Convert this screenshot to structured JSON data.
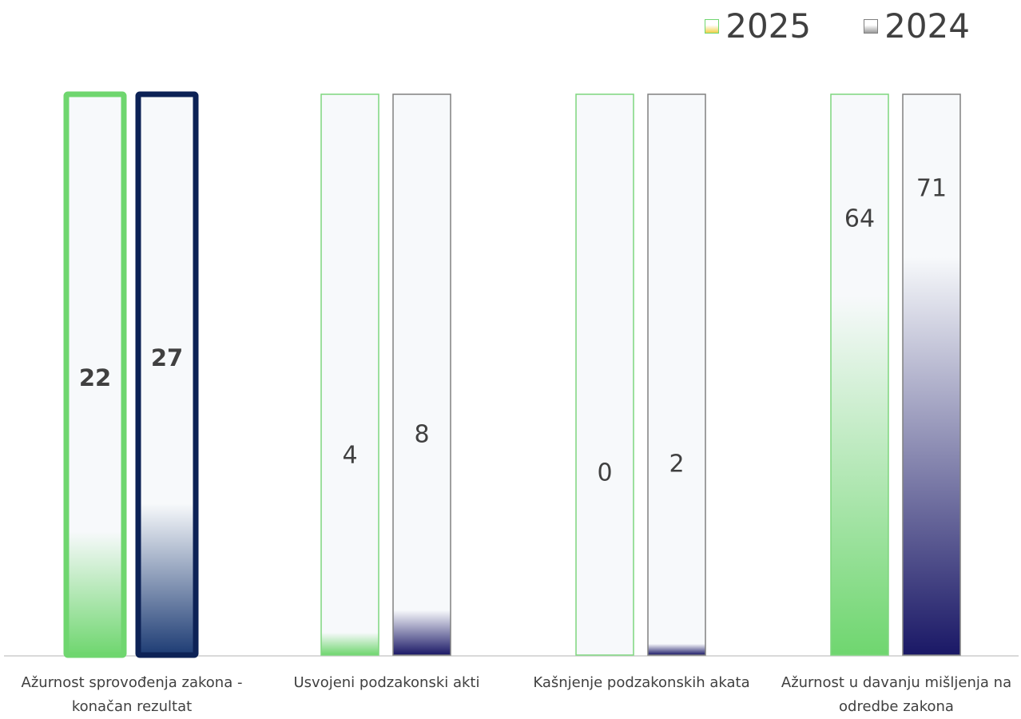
{
  "chart_data": {
    "type": "bar",
    "categories": [
      "Ažurnost sprovođenja zakona - konačan rezultat",
      "Usvojeni podzakonski akti",
      "Kašnjenje podzakonskih akata",
      "Ažurnost u davanju mišljenja na odredbe zakona"
    ],
    "series": [
      {
        "name": "2025",
        "values": [
          22,
          4,
          0,
          64
        ]
      },
      {
        "name": "2024",
        "values": [
          27,
          8,
          2,
          71
        ]
      }
    ],
    "highlighted_category": "Ažurnost sprovođenja zakona - konačan rezultat",
    "legend_position": "top-right",
    "grid": false,
    "colors": {
      "s2025_fill": "#6fd66f",
      "s2025_border": "#7ed67e",
      "s2024_fill": "#1a1866",
      "s2024_border": "#808080",
      "highlight_2025_border": "#6fd66f",
      "highlight_2024_border": "#0d2256",
      "highlight_2024_fill": "#1d3c74",
      "bar_background": "#f7f9fb",
      "text": "#404040",
      "axis": "#d9d9d9"
    }
  }
}
